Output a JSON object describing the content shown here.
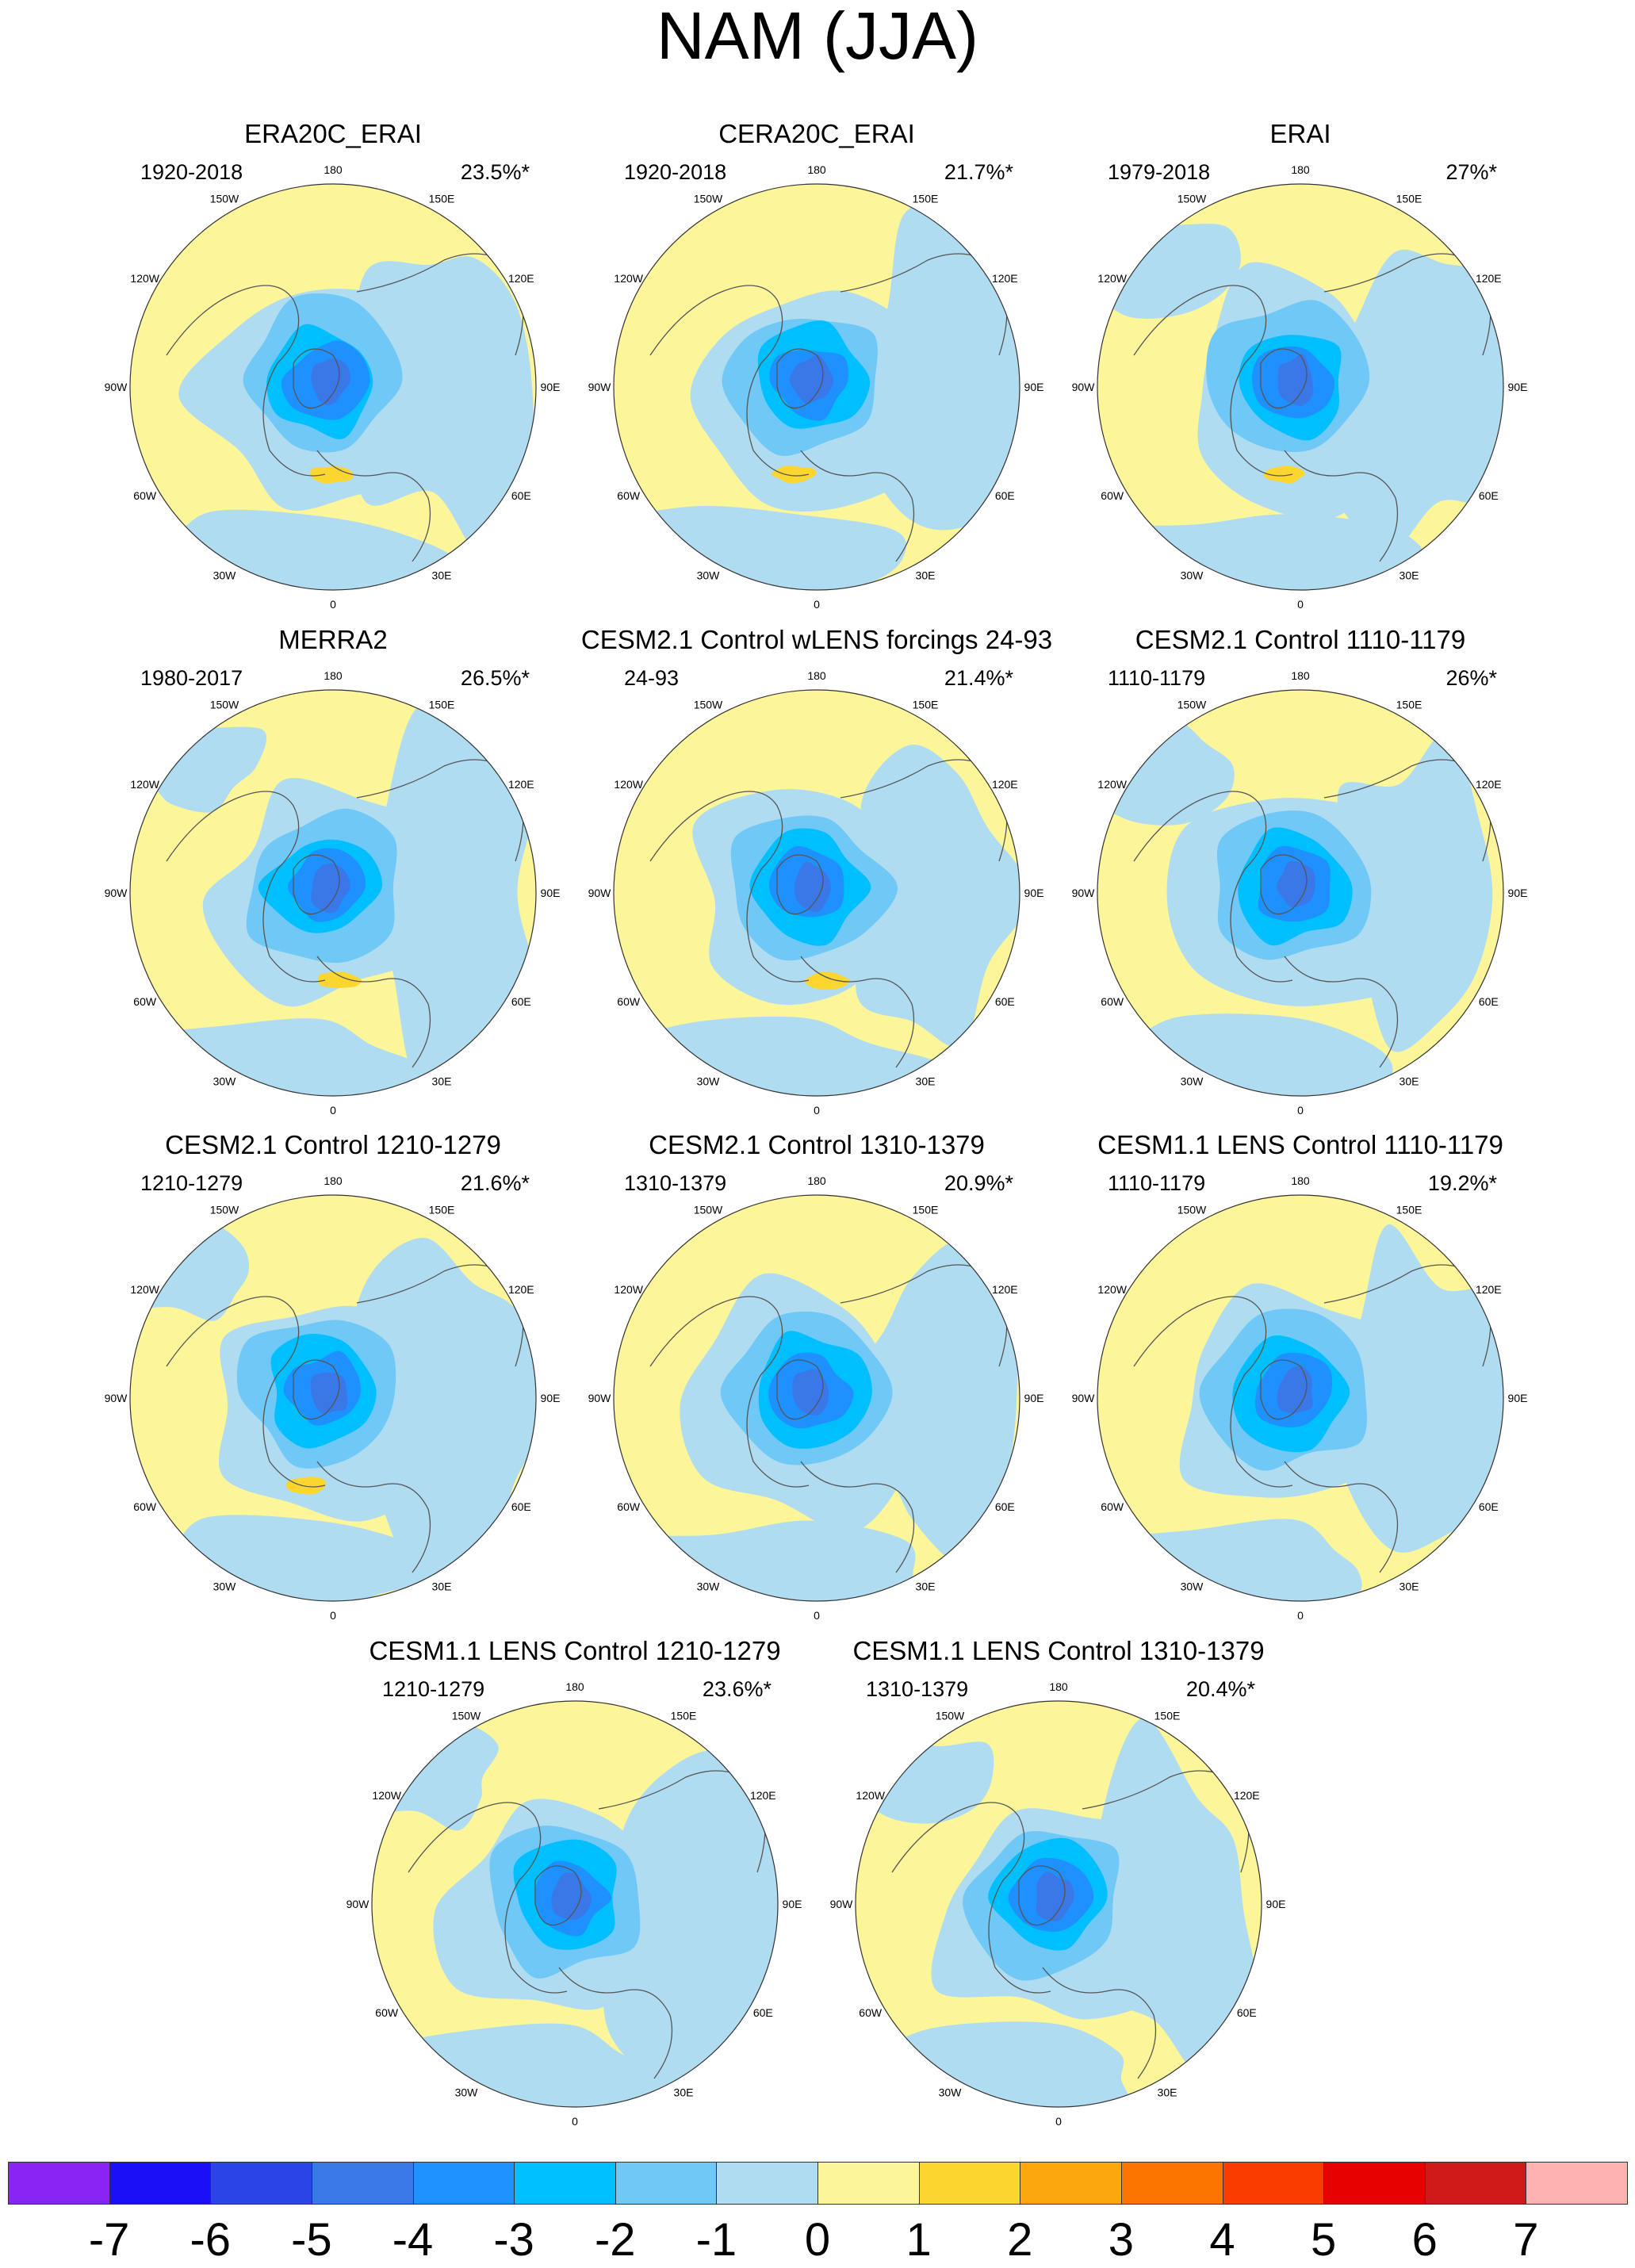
{
  "title": "NAM (JJA)",
  "lon_labels": [
    "180",
    "150E",
    "120E",
    "90E",
    "60E",
    "30E",
    "0",
    "30W",
    "60W",
    "90W",
    "120W",
    "150W"
  ],
  "panels": [
    {
      "title": "ERA20C_ERAI",
      "period": "1920-2018",
      "variance": "23.5%*"
    },
    {
      "title": "CERA20C_ERAI",
      "period": "1920-2018",
      "variance": "21.7%*"
    },
    {
      "title": "ERAI",
      "period": "1979-2018",
      "variance": "27%*"
    },
    {
      "title": "MERRA2",
      "period": "1980-2017",
      "variance": "26.5%*"
    },
    {
      "title": "CESM2.1 Control wLENS forcings 24-93",
      "period": "24-93",
      "variance": "21.4%*"
    },
    {
      "title": "CESM2.1 Control 1110-1179",
      "period": "1110-1179",
      "variance": "26%*"
    },
    {
      "title": "CESM2.1 Control 1210-1279",
      "period": "1210-1279",
      "variance": "21.6%*"
    },
    {
      "title": "CESM2.1 Control 1310-1379",
      "period": "1310-1379",
      "variance": "20.9%*"
    },
    {
      "title": "CESM1.1 LENS Control 1110-1179",
      "period": "1110-1179",
      "variance": "19.2%*"
    },
    {
      "title": "CESM1.1 LENS Control 1210-1279",
      "period": "1210-1279",
      "variance": "23.6%*"
    },
    {
      "title": "CESM1.1 LENS Control 1310-1379",
      "period": "1310-1379",
      "variance": "20.4%*"
    }
  ],
  "colorbar": {
    "labels": [
      "-7",
      "-6",
      "-5",
      "-4",
      "-3",
      "-2",
      "-1",
      "0",
      "1",
      "2",
      "3",
      "4",
      "5",
      "6",
      "7"
    ],
    "colors": [
      "#8a24f5",
      "#1a10f8",
      "#2a44e6",
      "#3a78e8",
      "#1e90ff",
      "#00bfff",
      "#6fc8f5",
      "#b0dcf2",
      "#fdf59a",
      "#fcd62e",
      "#fca70e",
      "#fb7500",
      "#fb3c00",
      "#e70000",
      "#d01a1a",
      "#ffb2b2"
    ]
  },
  "colors": {
    "positive_weak": "#fdf59a",
    "negative_weak": "#b0dcf2",
    "land_outline": "#555555",
    "map_border": "#333333"
  }
}
